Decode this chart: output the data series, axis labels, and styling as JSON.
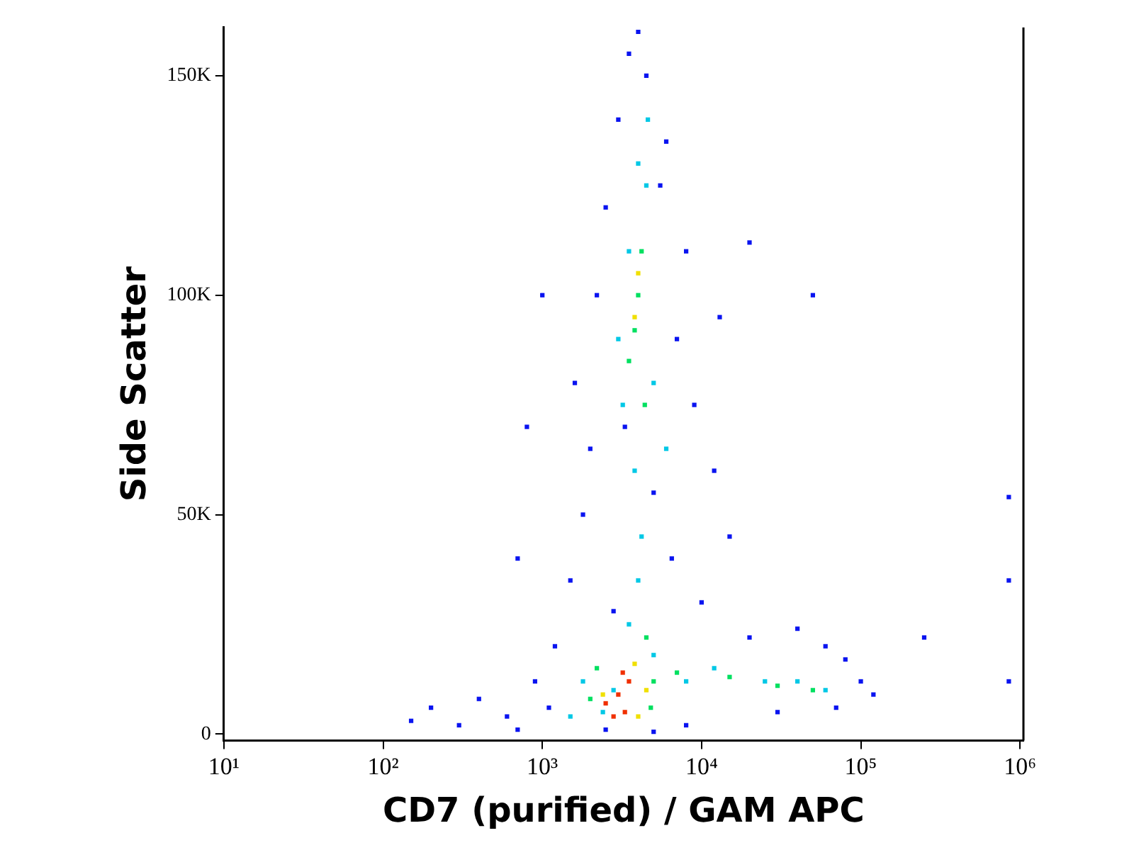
{
  "chart_data": {
    "type": "scatter",
    "xlabel": "CD7 (purified) / GAM APC",
    "ylabel": "Side Scatter",
    "log": "x",
    "grid": false,
    "legend": false,
    "marker": "square",
    "xlim": [
      10,
      1050000
    ],
    "xticks": [
      {
        "value": 10,
        "label": "10¹"
      },
      {
        "value": 100,
        "label": "10²"
      },
      {
        "value": 1000,
        "label": "10³"
      },
      {
        "value": 10000,
        "label": "10⁴"
      },
      {
        "value": 100000,
        "label": "10⁵"
      },
      {
        "value": 1000000,
        "label": "10⁶"
      }
    ],
    "ylim": [
      -1500,
      161000
    ],
    "yticks": [
      0,
      {
        "value": 50000,
        "label": "50K"
      },
      {
        "value": 100000,
        "label": "100K"
      },
      {
        "value": 150000,
        "label": "150K"
      }
    ],
    "series": [
      {
        "color": "#0a14f0",
        "x": [
          150,
          200,
          300,
          400,
          600,
          700,
          900,
          1200,
          1500,
          1800,
          2000,
          1600,
          2200,
          2500,
          3000,
          3500,
          4500,
          6000,
          8000,
          7000,
          9000,
          12000,
          15000,
          10000,
          20000,
          40000,
          60000,
          80000,
          100000,
          120000,
          70000,
          30000,
          8000,
          5000,
          2500,
          1100,
          1000,
          800,
          4000,
          5500,
          13000,
          2800,
          6500,
          5000,
          3300,
          20000,
          50000,
          250000,
          700,
          850000,
          850000,
          850000
        ],
        "values": [
          3000,
          6000,
          2000,
          8000,
          4000,
          1000,
          12000,
          20000,
          35000,
          50000,
          65000,
          80000,
          100000,
          120000,
          140000,
          155000,
          150000,
          135000,
          110000,
          90000,
          75000,
          60000,
          45000,
          30000,
          22000,
          24000,
          20000,
          17000,
          12000,
          9000,
          6000,
          5000,
          2000,
          500,
          1000,
          6000,
          100000,
          70000,
          160000,
          125000,
          95000,
          28000,
          40000,
          55000,
          70000,
          112000,
          100000,
          22000,
          40000,
          54000,
          35000,
          12000
        ]
      },
      {
        "color": "#00c8e6",
        "x": [
          2800,
          3500,
          4000,
          4200,
          3800,
          3200,
          3000,
          3500,
          4500,
          5000,
          6000,
          2400,
          1500,
          1800,
          8000,
          12000,
          25000,
          40000,
          60000,
          5000,
          4000,
          4600
        ],
        "values": [
          10000,
          25000,
          35000,
          45000,
          60000,
          75000,
          90000,
          110000,
          125000,
          80000,
          65000,
          5000,
          4000,
          12000,
          12000,
          15000,
          12000,
          12000,
          10000,
          18000,
          130000,
          140000
        ]
      },
      {
        "color": "#00e060",
        "x": [
          3500,
          4000,
          4200,
          3800,
          4400,
          2000,
          5000,
          7000,
          15000,
          30000,
          50000,
          4500,
          2200,
          4800
        ],
        "values": [
          85000,
          100000,
          110000,
          92000,
          75000,
          8000,
          12000,
          14000,
          13000,
          11000,
          10000,
          22000,
          15000,
          6000
        ]
      },
      {
        "color": "#f0e000",
        "x": [
          3800,
          4000,
          2400,
          3800,
          4500,
          4000
        ],
        "values": [
          95000,
          105000,
          9000,
          16000,
          10000,
          4000
        ]
      },
      {
        "color": "#f03000",
        "x": [
          2500,
          3000,
          3300,
          3500,
          2800,
          3200
        ],
        "values": [
          7000,
          9000,
          5000,
          12000,
          4000,
          14000
        ]
      }
    ]
  }
}
